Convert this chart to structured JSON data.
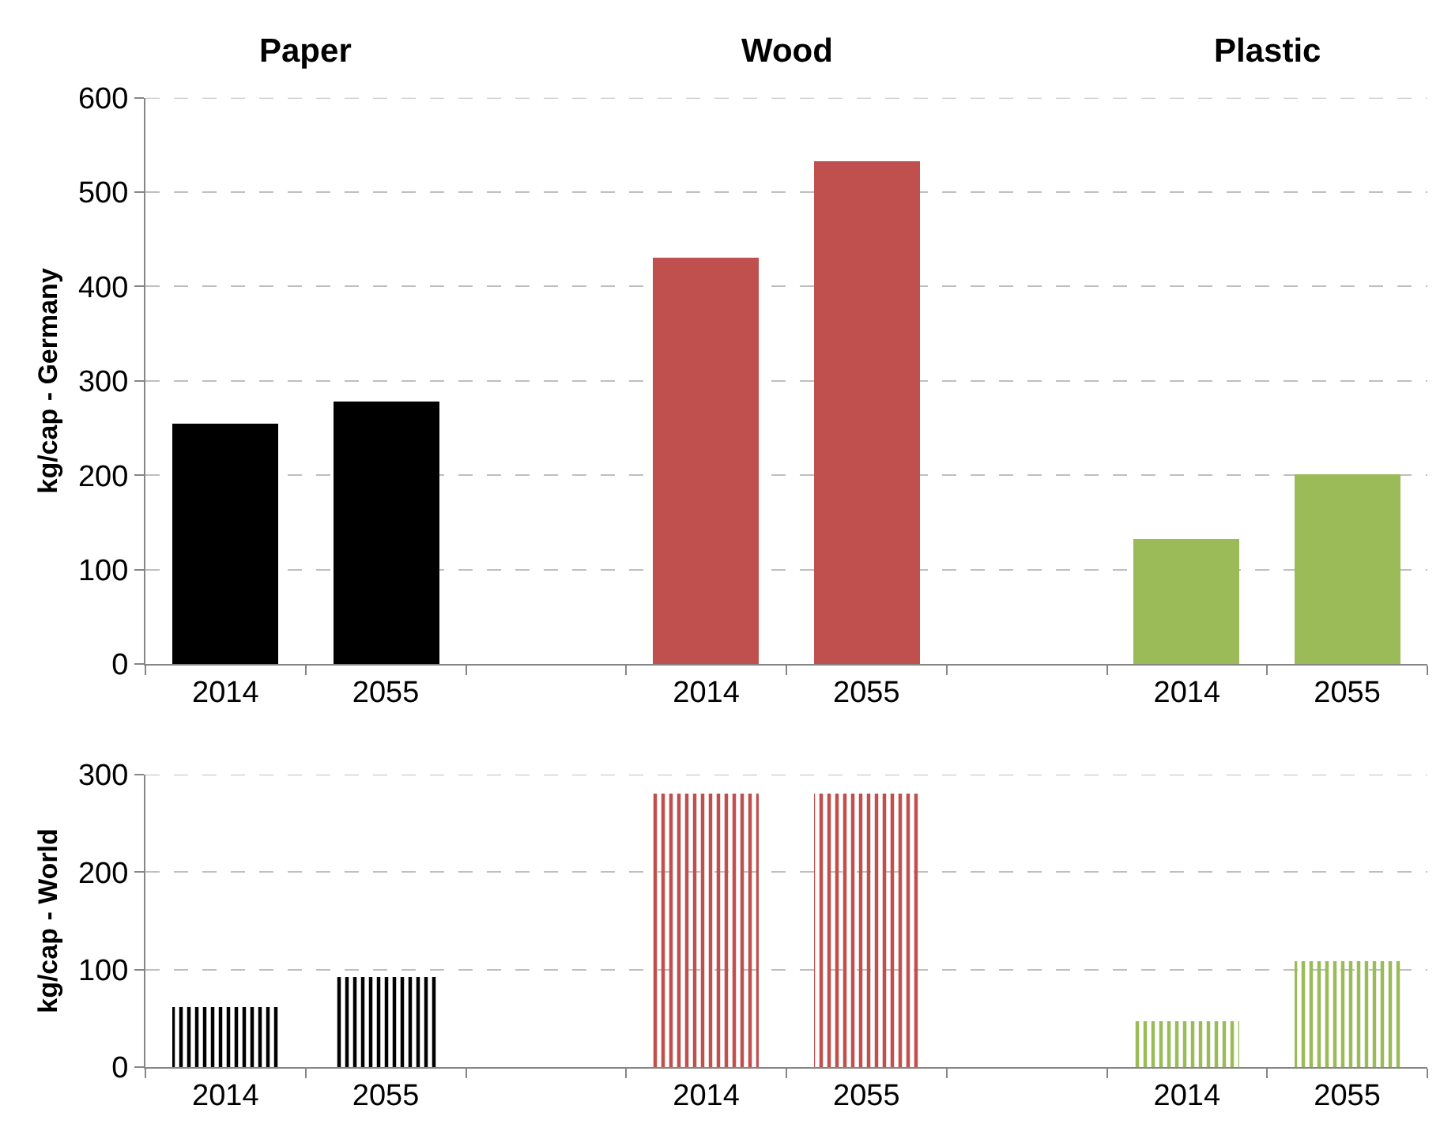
{
  "chart_data": [
    {
      "type": "bar",
      "ylabel": "kg/cap - Germany",
      "categories": [
        "2014",
        "2055",
        null,
        "2014",
        "2055",
        null,
        "2014",
        "2055"
      ],
      "values": [
        255,
        278,
        null,
        430,
        533,
        null,
        133,
        202
      ],
      "colors": [
        "#000000",
        "#000000",
        "#ffffff",
        "#c0504d",
        "#c0504d",
        "#ffffff",
        "#9bbb59",
        "#9bbb59"
      ],
      "annotations": [
        "Paper",
        "Wood",
        "Plastic"
      ],
      "ylim": [
        0,
        600
      ],
      "yticks": [
        0,
        100,
        200,
        300,
        400,
        500,
        600
      ],
      "grid": "y"
    },
    {
      "type": "bar",
      "ylabel": "kg/cap - World",
      "categories": [
        "2014",
        "2055",
        null,
        "2014",
        "2055",
        null,
        "2014",
        "2055"
      ],
      "values": [
        61,
        92,
        null,
        280,
        280,
        null,
        47,
        109
      ],
      "colors": [
        "#000000",
        "#000000",
        "#ffffff",
        "#c0504d",
        "#c0504d",
        "#ffffff",
        "#9bbb59",
        "#9bbb59"
      ],
      "ylim": [
        0,
        300
      ],
      "yticks": [
        0,
        100,
        200,
        300
      ],
      "grid": "y"
    }
  ]
}
